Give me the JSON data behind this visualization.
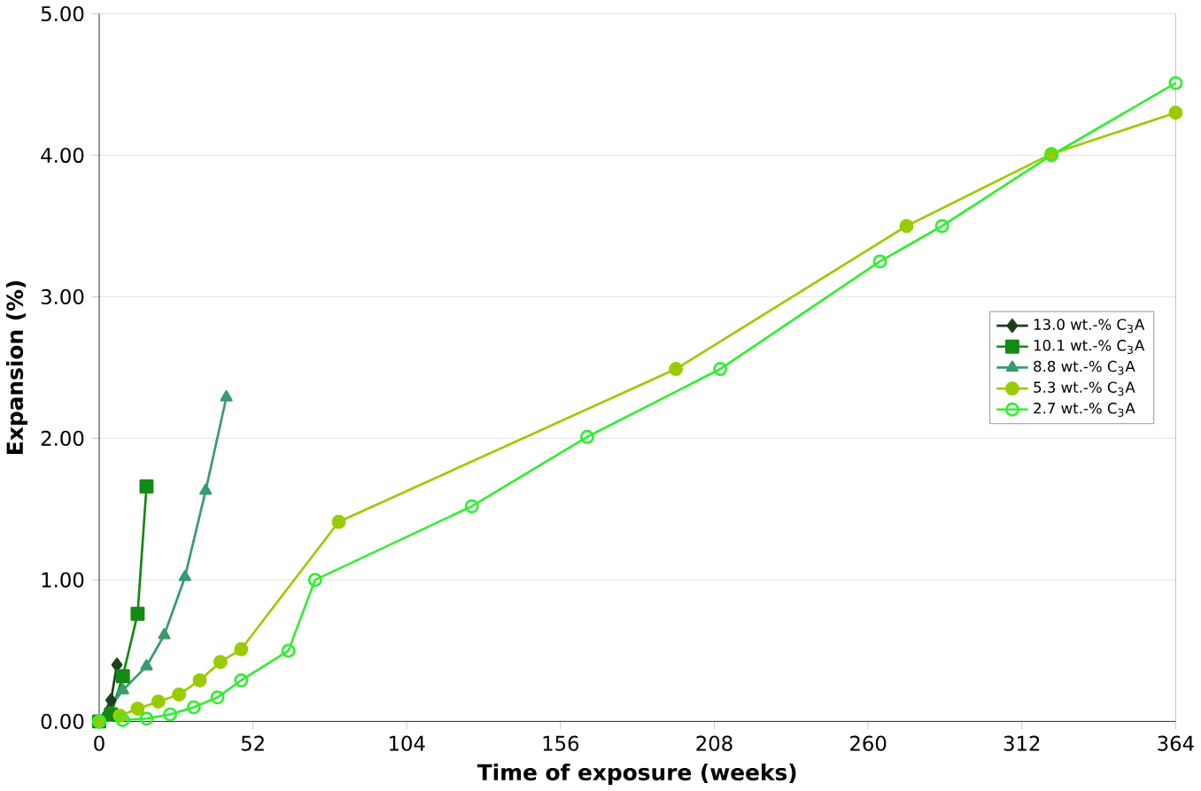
{
  "chart_data": {
    "type": "line",
    "xlabel": "Time of exposure (weeks)",
    "ylabel": "Expansion (%)",
    "xlim": [
      0,
      364
    ],
    "ylim": [
      0,
      5
    ],
    "xticks": [
      0,
      52,
      104,
      156,
      208,
      260,
      312,
      364
    ],
    "yticks": [
      {
        "value": 0,
        "label": "0.00"
      },
      {
        "value": 1,
        "label": "1.00"
      },
      {
        "value": 2,
        "label": "2.00"
      },
      {
        "value": 3,
        "label": "3.00"
      },
      {
        "value": 4,
        "label": "4.00"
      },
      {
        "value": 5,
        "label": "5.00"
      }
    ],
    "grid": "y",
    "legend": "right",
    "line_style": "solid",
    "series": [
      {
        "name": "13.0 wt.-% C$_{3}$A",
        "color": "#1f3d1f",
        "marker": "diamond",
        "x": [
          0,
          2,
          4,
          6
        ],
        "values": [
          0,
          null,
          0.15,
          0.4
        ]
      },
      {
        "name": "10.1 wt.-% C$_{3}$A",
        "color": "#138a13",
        "marker": "square",
        "x": [
          0,
          4,
          8,
          13,
          16
        ],
        "values": [
          0,
          0.05,
          0.32,
          0.76,
          1.66
        ]
      },
      {
        "name": "8.8 wt.-% C$_{3}$A",
        "color": "#3a9a70",
        "marker": "triangle",
        "x": [
          0,
          8,
          16,
          22,
          29,
          36,
          43
        ],
        "values": [
          0,
          0.22,
          0.39,
          0.61,
          1.02,
          1.63,
          2.29
        ]
      },
      {
        "name": "5.3 wt.-% C$_{3}$A",
        "color": "#99cc00",
        "marker": "circle",
        "x": [
          0,
          7,
          13,
          20,
          27,
          34,
          41,
          48,
          81,
          195,
          273,
          322,
          364
        ],
        "values": [
          0,
          0.04,
          0.09,
          0.14,
          0.19,
          0.29,
          0.42,
          0.51,
          1.41,
          2.49,
          3.5,
          4.01,
          4.3
        ]
      },
      {
        "name": "2.7 wt.-% C$_{3}$A",
        "color": "#33ee33",
        "marker": "circle",
        "x": [
          0,
          8,
          16,
          24,
          32,
          40,
          48,
          64,
          73,
          126,
          165,
          210,
          264,
          285,
          322,
          364
        ],
        "values": [
          0,
          0.01,
          0.02,
          0.05,
          0.1,
          0.17,
          0.29,
          0.5,
          1.0,
          1.52,
          2.01,
          2.49,
          3.25,
          3.5,
          4.0,
          4.51
        ]
      }
    ]
  }
}
